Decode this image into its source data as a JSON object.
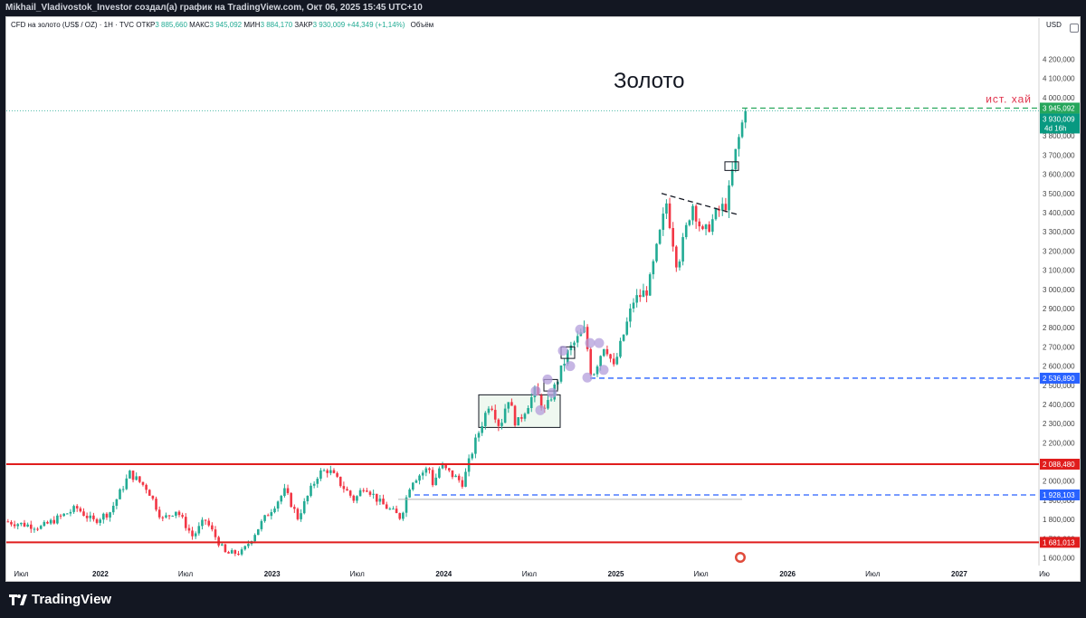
{
  "header": {
    "title": "Mikhail_Vladivostok_Investor создал(а) график на TradingView.com, Окт 06, 2025 15:45 UTC+10"
  },
  "legend": {
    "symbol": "CFD на золото (US$ / OZ) · 1Н · TVC",
    "open_label": "ОТКР",
    "open": "3 885,660",
    "high_label": "МАКС",
    "high": "3 945,092",
    "low_label": "МИН",
    "low": "3 884,170",
    "close_label": "ЗАКР",
    "close": "3 930,009",
    "change": "+44,349 (+1,14%)",
    "volume_label": "Объём",
    "currency": "USD"
  },
  "footer": {
    "brand": "TradingView"
  },
  "colors": {
    "up": "#22ab94",
    "down": "#f23645",
    "red_level": "#e01d1d",
    "blue_level": "#2962ff",
    "green_level": "#26a65b",
    "zone_fill": "#e8f5e9",
    "circle": "#b39ddb"
  },
  "chart_data": {
    "type": "candlestick",
    "title": "Золото",
    "ylim": [
      1560,
      4320
    ],
    "x_ticks": [
      "Июл",
      "2022",
      "Июл",
      "2023",
      "Июл",
      "2024",
      "Июл",
      "2025",
      "Июл",
      "2026",
      "Июл",
      "2027",
      "Ию"
    ],
    "y_ticks": [
      "4 200,000",
      "4 100,000",
      "4 000,000",
      "3 900,000",
      "3 800,000",
      "3 700,000",
      "3 600,000",
      "3 500,000",
      "3 400,000",
      "3 300,000",
      "3 200,000",
      "3 100,000",
      "3 000,000",
      "2 900,000",
      "2 800,000",
      "2 700,000",
      "2 600,000",
      "2 500,000",
      "2 400,000",
      "2 300,000",
      "2 200,000",
      "2 100,000",
      "2 000,000",
      "1 900,000",
      "1 800,000",
      "1 700,000",
      "1 600,000"
    ],
    "y_tick_values": [
      4200,
      4100,
      4000,
      3900,
      3800,
      3700,
      3600,
      3500,
      3400,
      3300,
      3200,
      3100,
      3000,
      2900,
      2800,
      2700,
      2600,
      2500,
      2400,
      2300,
      2200,
      2100,
      2000,
      1900,
      1800,
      1700,
      1600
    ],
    "price_path": [
      [
        "2021-06-15",
        1790
      ],
      [
        "2021-09-01",
        1760
      ],
      [
        "2021-11-15",
        1860
      ],
      [
        "2021-12-20",
        1790
      ],
      [
        "2022-01-25",
        1840
      ],
      [
        "2022-03-08",
        2040
      ],
      [
        "2022-04-15",
        1960
      ],
      [
        "2022-05-16",
        1800
      ],
      [
        "2022-06-15",
        1850
      ],
      [
        "2022-07-20",
        1710
      ],
      [
        "2022-08-15",
        1800
      ],
      [
        "2022-09-28",
        1620
      ],
      [
        "2022-11-03",
        1630
      ],
      [
        "2022-12-15",
        1790
      ],
      [
        "2023-02-01",
        1950
      ],
      [
        "2023-02-28",
        1810
      ],
      [
        "2023-04-13",
        2040
      ],
      [
        "2023-05-04",
        2060
      ],
      [
        "2023-06-29",
        1900
      ],
      [
        "2023-07-20",
        1980
      ],
      [
        "2023-08-21",
        1890
      ],
      [
        "2023-10-05",
        1810
      ],
      [
        "2023-10-27",
        2000
      ],
      [
        "2023-12-04",
        2070
      ],
      [
        "2023-12-13",
        1980
      ],
      [
        "2023-12-28",
        2080
      ],
      [
        "2024-02-14",
        1990
      ],
      [
        "2024-03-08",
        2180
      ],
      [
        "2024-04-12",
        2420
      ],
      [
        "2024-05-03",
        2280
      ],
      [
        "2024-05-20",
        2440
      ],
      [
        "2024-06-07",
        2290
      ],
      [
        "2024-07-17",
        2470
      ],
      [
        "2024-08-07",
        2360
      ],
      [
        "2024-09-26",
        2680
      ],
      [
        "2024-10-30",
        2790
      ],
      [
        "2024-11-14",
        2540
      ],
      [
        "2024-12-12",
        2720
      ],
      [
        "2024-12-31",
        2590
      ],
      [
        "2025-02-11",
        2940
      ],
      [
        "2025-03-14",
        3000
      ],
      [
        "2025-04-22",
        3450
      ],
      [
        "2025-05-15",
        3120
      ],
      [
        "2025-06-16",
        3450
      ],
      [
        "2025-07-09",
        3280
      ],
      [
        "2025-08-08",
        3400
      ],
      [
        "2025-08-29",
        3450
      ],
      [
        "2025-09-15",
        3700
      ],
      [
        "2025-10-06",
        3930
      ]
    ],
    "levels": [
      {
        "name": "red-support-top",
        "value": 2088.48,
        "label": "2 088,480",
        "color": "#e01d1d"
      },
      {
        "name": "red-support-bottom",
        "value": 1681.013,
        "label": "1 681,013",
        "color": "#e01d1d"
      },
      {
        "name": "blue-dashed-lower",
        "value": 1928.103,
        "label": "1 928,103",
        "color": "#2962ff"
      },
      {
        "name": "blue-dashed-upper",
        "value": 2536.89,
        "label": "2 536,890",
        "color": "#2962ff"
      }
    ],
    "ath": {
      "text": "ист. хай",
      "high_label": "3 945,092",
      "close_label": "3 930,009",
      "countdown": "4d 16h",
      "value": 3945.092
    },
    "last_price": 3930.009
  }
}
